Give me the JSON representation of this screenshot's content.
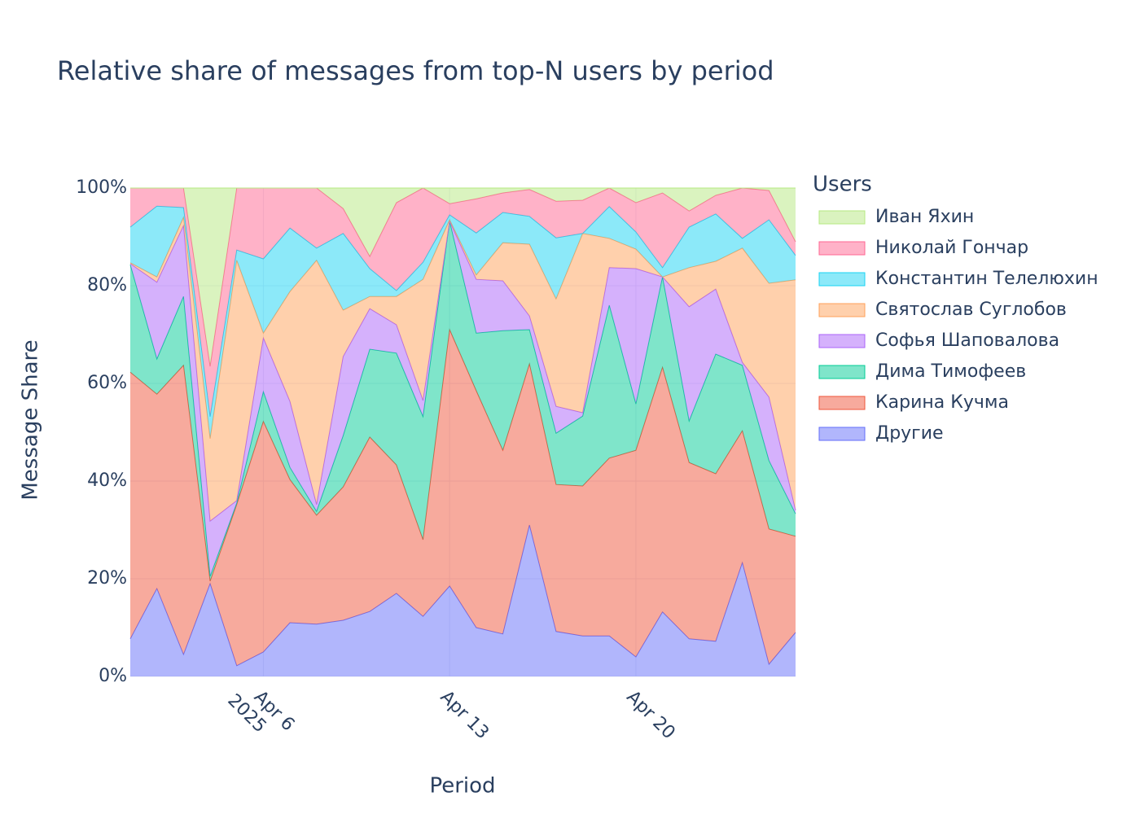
{
  "chart_data": {
    "type": "area",
    "title": "Relative share of messages from top-N users by period",
    "x_label": "Period",
    "y_label": "Message Share",
    "legend_title": "Users",
    "stacked": true,
    "grid": true,
    "legend_position": "right",
    "x": [
      "2025-04-01",
      "2025-04-02",
      "2025-04-03",
      "2025-04-04",
      "2025-04-05",
      "2025-04-06",
      "2025-04-07",
      "2025-04-08",
      "2025-04-09",
      "2025-04-10",
      "2025-04-11",
      "2025-04-12",
      "2025-04-13",
      "2025-04-14",
      "2025-04-15",
      "2025-04-16",
      "2025-04-17",
      "2025-04-18",
      "2025-04-19",
      "2025-04-20",
      "2025-04-21",
      "2025-04-22",
      "2025-04-23",
      "2025-04-24",
      "2025-04-25",
      "2025-04-26"
    ],
    "xlim": [
      "2025-04-01",
      "2025-04-26"
    ],
    "xticks": [
      {
        "value": "2025-04-06",
        "label": "Apr 6"
      },
      {
        "value": "2025-04-13",
        "label": "Apr 13"
      },
      {
        "value": "2025-04-20",
        "label": "Apr 20"
      }
    ],
    "x_year_label": "2025",
    "ylim": [
      0,
      100
    ],
    "yticks": [
      {
        "value": 0,
        "label": "0%"
      },
      {
        "value": 20,
        "label": "20%"
      },
      {
        "value": 40,
        "label": "40%"
      },
      {
        "value": 60,
        "label": "60%"
      },
      {
        "value": 80,
        "label": "80%"
      },
      {
        "value": 100,
        "label": "100%"
      }
    ],
    "series": [
      {
        "name": "Другие",
        "color": "#636efa",
        "values": [
          7.7,
          18,
          4.5,
          19,
          2.2,
          5,
          11,
          10.7,
          11.5,
          13.3,
          17,
          12.3,
          18.5,
          10,
          8.7,
          31,
          9.2,
          8.3,
          8.3,
          4,
          13.2,
          7.7,
          7.2,
          23.3,
          2.5,
          9
        ]
      },
      {
        "name": "Карина Кучма",
        "color": "#ef553b",
        "values": [
          54.6,
          39.8,
          59.2,
          0.5,
          33,
          47.2,
          29.3,
          22.3,
          27.3,
          35.7,
          26.3,
          15.7,
          52.5,
          48.5,
          37.6,
          33,
          30.1,
          30.7,
          36.4,
          42.3,
          50.1,
          36.1,
          34.3,
          27,
          27.7,
          19.7
        ]
      },
      {
        "name": "Дима Тимофеев",
        "color": "#00cc96",
        "values": [
          22,
          7.2,
          14.1,
          1,
          0.3,
          6.1,
          2.5,
          0.8,
          10.5,
          18,
          22.9,
          25.2,
          22.2,
          11.8,
          24.5,
          7,
          10.5,
          14.3,
          31.3,
          9.5,
          18.5,
          8.5,
          24.5,
          13.4,
          14,
          4.6
        ]
      },
      {
        "name": "Софья Шаповалова",
        "color": "#ab63fa",
        "values": [
          0.2,
          15.7,
          14.5,
          11.3,
          0.5,
          11,
          13.5,
          1.4,
          16.2,
          8.3,
          5.8,
          3.3,
          0,
          11,
          10.2,
          2.8,
          5.5,
          0.7,
          7.7,
          27.7,
          0,
          23.4,
          13.3,
          0.6,
          13,
          0.7
        ]
      },
      {
        "name": "Святослав Суглобов",
        "color": "#ffa15a",
        "values": [
          0.2,
          1.1,
          1.7,
          16.9,
          49.2,
          1,
          22.5,
          50,
          9.5,
          2.5,
          5.8,
          24.8,
          0.3,
          0.9,
          7.8,
          14.7,
          22,
          36.7,
          6,
          4,
          0,
          8,
          5.7,
          23.4,
          23.3,
          47.2
        ]
      },
      {
        "name": "Константин Телелюхин",
        "color": "#19d3f3",
        "values": [
          7.3,
          14.5,
          2,
          4.5,
          2.1,
          15.2,
          13,
          2.5,
          15.7,
          5.7,
          1.2,
          3.5,
          1,
          8.6,
          6.2,
          5.7,
          12.5,
          0,
          6.5,
          3.5,
          1.9,
          8.3,
          9.7,
          2,
          13,
          5
        ]
      },
      {
        "name": "Николай Гончар",
        "color": "#ff6692",
        "values": [
          8,
          3.7,
          4,
          10.3,
          12.7,
          14.5,
          8.2,
          12.3,
          5.1,
          2.5,
          18,
          15.2,
          2.3,
          7,
          4,
          5.5,
          7.5,
          6.8,
          3.8,
          6,
          15.3,
          3.3,
          3.8,
          10.3,
          6,
          2.8
        ]
      },
      {
        "name": "Иван Яхин",
        "color": "#b6e880",
        "values": [
          0,
          0,
          0,
          36.5,
          0,
          0,
          0,
          0,
          4.2,
          14,
          3,
          0,
          3.2,
          2.2,
          1,
          0.3,
          2.7,
          2.5,
          0,
          3,
          1,
          4.7,
          1.5,
          0,
          0.5,
          11
        ]
      }
    ]
  }
}
